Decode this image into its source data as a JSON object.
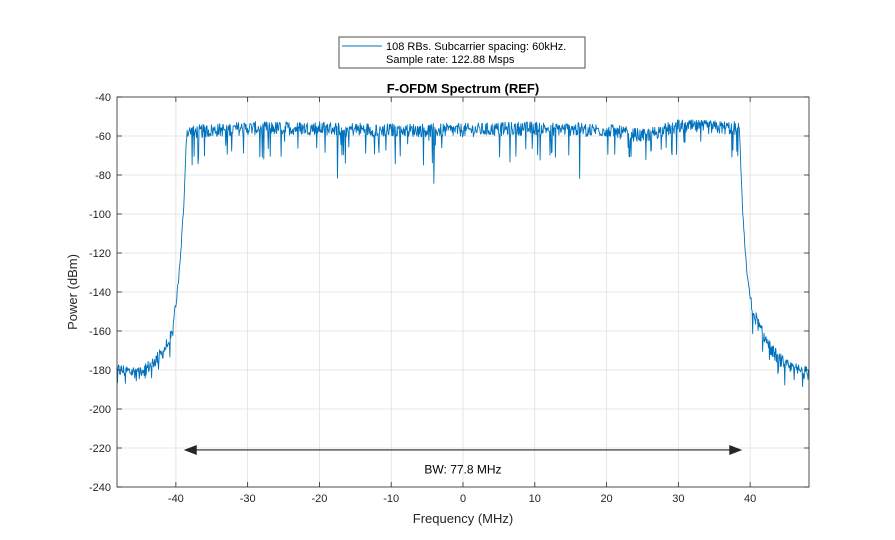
{
  "chart_data": {
    "type": "line",
    "title": "F-OFDM Spectrum (REF)",
    "xlabel": "Frequency (MHz)",
    "ylabel": "Power (dBm)",
    "xlim": [
      -48.2,
      48.2
    ],
    "ylim": [
      -240,
      -40
    ],
    "x_ticks": [
      -40,
      -30,
      -20,
      -10,
      0,
      10,
      20,
      30,
      40
    ],
    "y_ticks": [
      -40,
      -60,
      -80,
      -100,
      -120,
      -140,
      -160,
      -180,
      -200,
      -220,
      -240
    ],
    "grid": true,
    "legend": {
      "position": "top-center, outside plot",
      "entries": [
        "108 RBs. Subcarrier spacing: 60kHz.",
        "Sample rate: 122.88 Msps"
      ]
    },
    "series": [
      {
        "name": "108 RBs. Subcarrier spacing: 60kHz. Sample rate: 122.88 Msps",
        "color": "#0072bd",
        "shape": {
          "passband_mhz": [
            -38.9,
            38.9
          ],
          "passband_level_dbm": -57,
          "passband_noise_db": 10,
          "noise_floor_dbm": -181,
          "sample_points": [
            [
              -48.2,
              -180
            ],
            [
              -46,
              -181
            ],
            [
              -44,
              -179
            ],
            [
              -42,
              -172
            ],
            [
              -40.5,
              -162
            ],
            [
              -39.8,
              -140
            ],
            [
              -39.4,
              -125
            ],
            [
              -38.9,
              -95
            ],
            [
              -38.5,
              -58
            ],
            [
              -30,
              -56
            ],
            [
              -20,
              -56
            ],
            [
              -10,
              -57
            ],
            [
              0,
              -57
            ],
            [
              10,
              -56
            ],
            [
              20,
              -57
            ],
            [
              25,
              -60
            ],
            [
              30,
              -55
            ],
            [
              38.5,
              -56
            ],
            [
              38.9,
              -95
            ],
            [
              39.5,
              -128
            ],
            [
              40.2,
              -148
            ],
            [
              41.5,
              -160
            ],
            [
              43,
              -170
            ],
            [
              45,
              -178
            ],
            [
              48.2,
              -182
            ]
          ]
        }
      }
    ],
    "annotations": [
      {
        "type": "double-arrow",
        "from_x": -38.9,
        "to_x": 38.9,
        "y": -221,
        "label": "BW: 77.8 MHz",
        "label_y": -231
      }
    ]
  }
}
